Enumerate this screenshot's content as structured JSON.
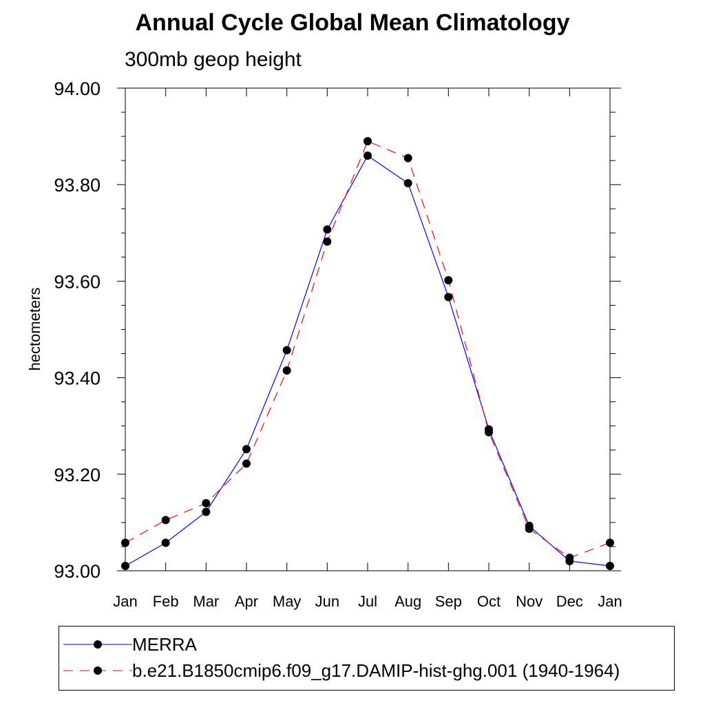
{
  "chart_data": {
    "type": "line",
    "title": "Annual Cycle Global Mean Climatology",
    "subtitle": "300mb geop height",
    "ylabel": "hectometers",
    "xlabel": "",
    "categories": [
      "Jan",
      "Feb",
      "Mar",
      "Apr",
      "May",
      "Jun",
      "Jul",
      "Aug",
      "Sep",
      "Oct",
      "Nov",
      "Dec",
      "Jan"
    ],
    "ylim": [
      93.0,
      94.0
    ],
    "yticks": [
      "93.00",
      "93.20",
      "93.40",
      "93.60",
      "93.80",
      "94.00"
    ],
    "ytick_values": [
      93.0,
      93.2,
      93.4,
      93.6,
      93.8,
      94.0
    ],
    "grid": false,
    "legend_position": "bottom",
    "series": [
      {
        "name": "MERRA",
        "color": "#0000ff",
        "line_style": "solid",
        "values": [
          93.01,
          93.058,
          93.122,
          93.252,
          93.457,
          93.707,
          93.86,
          93.803,
          93.567,
          93.293,
          93.093,
          93.02,
          93.01
        ]
      },
      {
        "name": "b.e21.B1850cmip6.f09_g17.DAMIP-hist-ghg.001 (1940-1964)",
        "color": "#ff0000",
        "line_style": "dashed",
        "values": [
          93.058,
          93.105,
          93.14,
          93.222,
          93.415,
          93.682,
          93.89,
          93.855,
          93.602,
          93.287,
          93.087,
          93.027,
          93.058
        ]
      }
    ]
  }
}
